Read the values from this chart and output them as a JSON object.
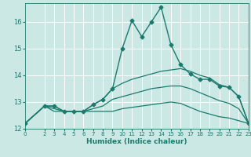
{
  "title": "",
  "xlabel": "Humidex (Indice chaleur)",
  "ylabel": "",
  "bg_color": "#cce8e4",
  "grid_color": "#ffffff",
  "line_color": "#1a7a6e",
  "xlim": [
    0,
    23
  ],
  "ylim": [
    12.0,
    16.7
  ],
  "xticks": [
    0,
    2,
    3,
    4,
    5,
    6,
    7,
    8,
    9,
    10,
    11,
    12,
    13,
    14,
    15,
    16,
    17,
    18,
    19,
    20,
    21,
    22,
    23
  ],
  "yticks": [
    12,
    13,
    14,
    15,
    16
  ],
  "series": [
    {
      "x": [
        0,
        2,
        3,
        4,
        5,
        6,
        7,
        8,
        9,
        10,
        11,
        12,
        13,
        14,
        15,
        16,
        17,
        18,
        19,
        20,
        21,
        22,
        23
      ],
      "y": [
        12.2,
        12.85,
        12.85,
        12.65,
        12.65,
        12.65,
        12.9,
        13.1,
        13.5,
        15.0,
        16.05,
        15.45,
        16.0,
        16.55,
        15.15,
        14.4,
        14.05,
        13.85,
        13.85,
        13.6,
        13.55,
        13.2,
        12.2
      ],
      "marker": "D",
      "markersize": 2.5,
      "linewidth": 1.0
    },
    {
      "x": [
        0,
        2,
        3,
        4,
        5,
        6,
        7,
        8,
        9,
        10,
        11,
        12,
        13,
        14,
        15,
        16,
        17,
        18,
        19,
        20,
        21,
        22,
        23
      ],
      "y": [
        12.2,
        12.85,
        12.85,
        12.65,
        12.65,
        12.65,
        12.9,
        13.1,
        13.5,
        13.7,
        13.85,
        13.95,
        14.05,
        14.15,
        14.2,
        14.25,
        14.15,
        14.0,
        13.9,
        13.65,
        13.55,
        13.2,
        12.2
      ],
      "marker": null,
      "markersize": 0,
      "linewidth": 0.9
    },
    {
      "x": [
        0,
        2,
        3,
        4,
        5,
        6,
        7,
        8,
        9,
        10,
        11,
        12,
        13,
        14,
        15,
        16,
        17,
        18,
        19,
        20,
        21,
        22,
        23
      ],
      "y": [
        12.2,
        12.85,
        12.65,
        12.65,
        12.65,
        12.65,
        12.65,
        12.65,
        12.65,
        12.75,
        12.8,
        12.85,
        12.9,
        12.95,
        13.0,
        12.95,
        12.8,
        12.65,
        12.55,
        12.45,
        12.4,
        12.3,
        12.2
      ],
      "marker": null,
      "markersize": 0,
      "linewidth": 0.9
    },
    {
      "x": [
        0,
        2,
        3,
        4,
        5,
        6,
        7,
        8,
        9,
        10,
        11,
        12,
        13,
        14,
        15,
        16,
        17,
        18,
        19,
        20,
        21,
        22,
        23
      ],
      "y": [
        12.2,
        12.85,
        12.75,
        12.65,
        12.65,
        12.65,
        12.75,
        12.85,
        13.1,
        13.2,
        13.3,
        13.4,
        13.5,
        13.55,
        13.6,
        13.6,
        13.5,
        13.35,
        13.2,
        13.05,
        12.95,
        12.75,
        12.2
      ],
      "marker": null,
      "markersize": 0,
      "linewidth": 0.9
    }
  ]
}
